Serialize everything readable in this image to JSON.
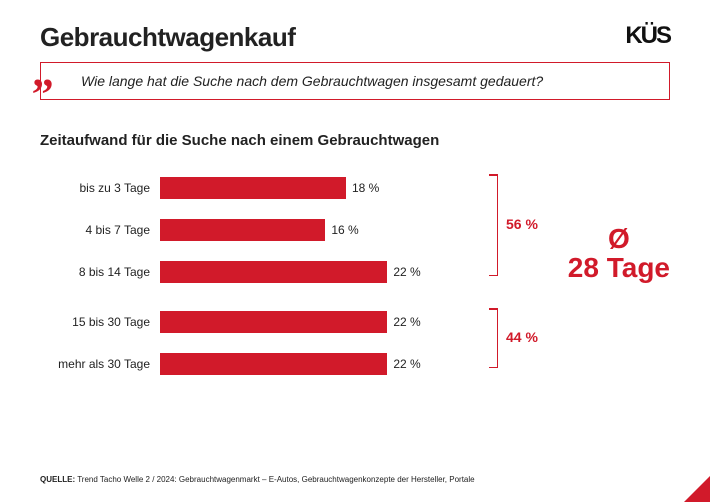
{
  "header": {
    "title": "Gebrauchtwagenkauf",
    "logo": "KÜS"
  },
  "quote": {
    "mark": "„",
    "text": "Wie lange hat die Suche nach dem Gebrauchtwagen insgesamt gedauert?"
  },
  "chart": {
    "title": "Zeitaufwand für die Suche nach einem Gebrauchtwagen",
    "type": "bar-horizontal",
    "bar_color": "#d11a2a",
    "max_value": 30,
    "bars": [
      {
        "label": "bis zu 3 Tage",
        "value": 18,
        "display": "18 %"
      },
      {
        "label": "4 bis 7 Tage",
        "value": 16,
        "display": "16 %"
      },
      {
        "label": "8 bis 14 Tage",
        "value": 22,
        "display": "22 %"
      },
      {
        "label": "15 bis 30 Tage",
        "value": 22,
        "display": "22 %"
      },
      {
        "label": "mehr als 30 Tage",
        "value": 22,
        "display": "22 %"
      }
    ],
    "groups": [
      {
        "from": 0,
        "to": 2,
        "label": "56 %"
      },
      {
        "from": 3,
        "to": 4,
        "label": "44 %"
      }
    ],
    "average": {
      "symbol": "Ø",
      "value": "28 Tage"
    }
  },
  "source": {
    "label": "QUELLE:",
    "text": "Trend Tacho Welle 2 / 2024: Gebrauchtwagenmarkt – E-Autos, Gebrauchtwagenkonzepte der Hersteller, Portale"
  },
  "colors": {
    "accent": "#d11a2a",
    "text": "#222222",
    "background": "#ffffff"
  }
}
